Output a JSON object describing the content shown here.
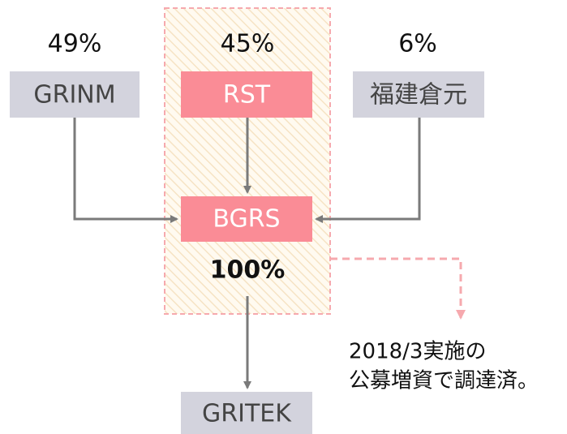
{
  "nodes": [
    {
      "label": "GRINM",
      "share": "49%"
    },
    {
      "label": "RST",
      "share": "45%"
    },
    {
      "label": "福建倉元",
      "share": "6%"
    },
    {
      "label": "BGRS",
      "share": "100%"
    },
    {
      "label": "GRITEK"
    }
  ],
  "note": [
    "2018/3実施の",
    "公募増資で調達済。"
  ]
}
